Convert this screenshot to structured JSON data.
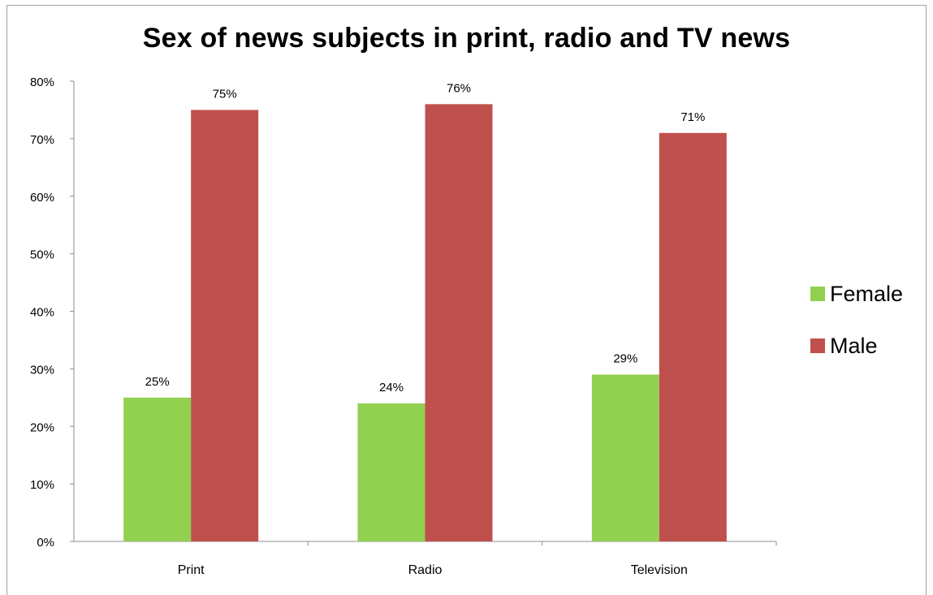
{
  "chart_data": {
    "type": "bar",
    "title": "Sex of news subjects in print, radio and TV news",
    "categories": [
      "Print",
      "Radio",
      "Television"
    ],
    "series": [
      {
        "name": "Female",
        "color": "#92d050",
        "values": [
          25,
          24,
          29
        ],
        "labels": [
          "25%",
          "24%",
          "29%"
        ]
      },
      {
        "name": "Male",
        "color": "#c0504d",
        "values": [
          75,
          76,
          71
        ],
        "labels": [
          "75%",
          "76%",
          "71%"
        ]
      }
    ],
    "ylim": [
      0,
      80
    ],
    "yticks": [
      "0%",
      "10%",
      "20%",
      "30%",
      "40%",
      "50%",
      "60%",
      "70%",
      "80%"
    ],
    "grid": false,
    "legend_position": "right"
  }
}
